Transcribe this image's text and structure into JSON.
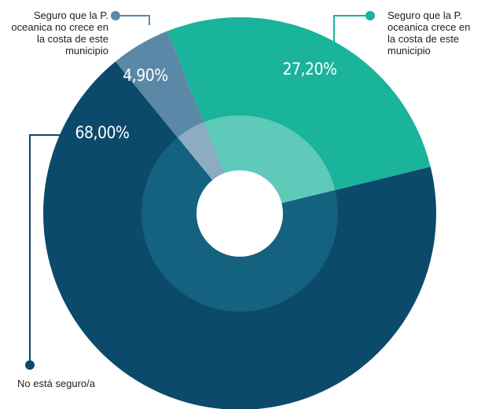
{
  "chart_data": {
    "type": "donut",
    "categories": [
      "Seguro que la P. oceanica crece en la costa de este municipio",
      "No está seguro/a",
      "Seguro que la P. oceanica no crece en la costa de este municipio"
    ],
    "values": [
      27.2,
      68.0,
      4.9
    ],
    "value_labels": [
      "27,20%",
      "68,00%",
      "4,90%"
    ],
    "colors": [
      "#1ab39b",
      "#0b4a6b",
      "#5c88a8"
    ]
  }
}
